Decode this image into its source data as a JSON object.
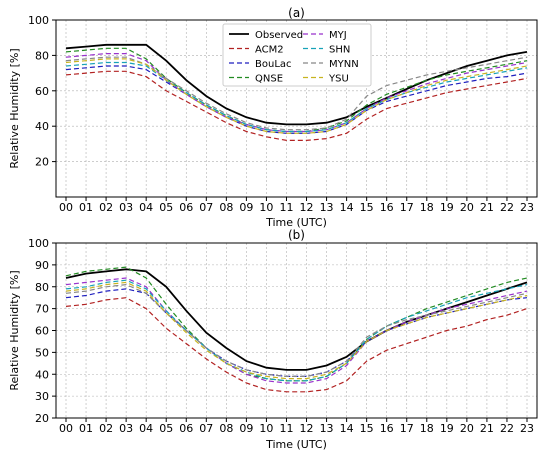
{
  "chart_data": [
    {
      "type": "line",
      "panel_label": "(a)",
      "xlabel": "Time (UTC)",
      "ylabel": "Relative Humidity [%]",
      "ylim": [
        0,
        100
      ],
      "yticks": [
        20,
        40,
        60,
        80,
        100
      ],
      "grid": true,
      "legend_position": "top-center",
      "categories": [
        "00",
        "01",
        "02",
        "03",
        "04",
        "05",
        "06",
        "07",
        "08",
        "09",
        "10",
        "11",
        "12",
        "13",
        "14",
        "15",
        "16",
        "17",
        "18",
        "19",
        "20",
        "21",
        "22",
        "23"
      ],
      "series": [
        {
          "name": "Observed",
          "color": "#000000",
          "dash": "solid",
          "values": [
            84,
            85,
            86,
            86,
            86,
            77,
            66,
            57,
            50,
            45,
            42,
            41,
            41,
            42,
            45,
            51,
            56,
            61,
            66,
            70,
            74,
            77,
            80,
            82
          ]
        },
        {
          "name": "ACM2",
          "color": "#b22222",
          "dash": "dashed",
          "values": [
            69,
            70,
            71,
            71,
            68,
            60,
            54,
            48,
            42,
            37,
            34,
            32,
            32,
            33,
            36,
            44,
            50,
            53,
            56,
            59,
            61,
            63,
            65,
            67
          ]
        },
        {
          "name": "BouLac",
          "color": "#1f1fbf",
          "dash": "dashed",
          "values": [
            72,
            73,
            74,
            74,
            72,
            65,
            58,
            51,
            45,
            40,
            37,
            36,
            36,
            37,
            41,
            49,
            54,
            57,
            60,
            63,
            65,
            67,
            68,
            70
          ]
        },
        {
          "name": "QNSE",
          "color": "#228b22",
          "dash": "dashed",
          "values": [
            82,
            83,
            84,
            84,
            78,
            67,
            59,
            52,
            46,
            41,
            38,
            37,
            37,
            39,
            43,
            52,
            58,
            62,
            66,
            69,
            71,
            73,
            75,
            77
          ]
        },
        {
          "name": "MYJ",
          "color": "#9932cc",
          "dash": "dashed",
          "values": [
            79,
            80,
            81,
            81,
            77,
            66,
            58,
            51,
            45,
            41,
            38,
            37,
            37,
            38,
            42,
            50,
            56,
            60,
            64,
            67,
            70,
            72,
            74,
            76
          ]
        },
        {
          "name": "SHN",
          "color": "#17a2b8",
          "dash": "dashed",
          "values": [
            74,
            75,
            76,
            76,
            74,
            66,
            59,
            52,
            46,
            41,
            38,
            37,
            37,
            38,
            42,
            50,
            55,
            59,
            62,
            65,
            67,
            69,
            71,
            73
          ]
        },
        {
          "name": "MYNN",
          "color": "#888888",
          "dash": "dashed",
          "values": [
            77,
            78,
            79,
            79,
            75,
            67,
            60,
            53,
            47,
            42,
            39,
            38,
            38,
            39,
            44,
            57,
            63,
            66,
            69,
            71,
            73,
            75,
            77,
            79
          ]
        },
        {
          "name": "YSU",
          "color": "#c8b420",
          "dash": "dashed",
          "values": [
            76,
            77,
            78,
            78,
            75,
            66,
            58,
            51,
            45,
            40,
            37,
            36,
            36,
            37,
            41,
            49,
            55,
            59,
            63,
            66,
            68,
            70,
            72,
            74
          ]
        }
      ]
    },
    {
      "type": "line",
      "panel_label": "(b)",
      "xlabel": "Time (UTC)",
      "ylabel": "Relative Humidity [%]",
      "ylim": [
        20,
        100
      ],
      "yticks": [
        20,
        30,
        40,
        50,
        60,
        70,
        80,
        90,
        100
      ],
      "grid": true,
      "categories": [
        "00",
        "01",
        "02",
        "03",
        "04",
        "05",
        "06",
        "07",
        "08",
        "09",
        "10",
        "11",
        "12",
        "13",
        "14",
        "15",
        "16",
        "17",
        "18",
        "19",
        "20",
        "21",
        "22",
        "23"
      ],
      "series": [
        {
          "name": "Observed",
          "color": "#000000",
          "dash": "solid",
          "values": [
            84,
            86,
            87,
            88,
            87,
            80,
            69,
            59,
            52,
            46,
            43,
            42,
            42,
            44,
            48,
            55,
            60,
            64,
            67,
            70,
            73,
            76,
            79,
            82
          ]
        },
        {
          "name": "ACM2",
          "color": "#b22222",
          "dash": "dashed",
          "values": [
            71,
            72,
            74,
            75,
            70,
            61,
            54,
            47,
            41,
            36,
            33,
            32,
            32,
            33,
            37,
            46,
            51,
            54,
            57,
            60,
            62,
            65,
            67,
            70
          ]
        },
        {
          "name": "BouLac",
          "color": "#1f1fbf",
          "dash": "dashed",
          "values": [
            75,
            76,
            78,
            79,
            77,
            68,
            60,
            52,
            46,
            42,
            40,
            39,
            39,
            41,
            46,
            55,
            60,
            63,
            66,
            68,
            70,
            72,
            74,
            75
          ]
        },
        {
          "name": "QNSE",
          "color": "#228b22",
          "dash": "dashed",
          "values": [
            85,
            87,
            88,
            89,
            84,
            72,
            61,
            52,
            45,
            40,
            38,
            37,
            37,
            39,
            45,
            56,
            62,
            66,
            70,
            73,
            76,
            79,
            82,
            84
          ]
        },
        {
          "name": "MYJ",
          "color": "#9932cc",
          "dash": "dashed",
          "values": [
            81,
            82,
            83,
            84,
            80,
            69,
            60,
            52,
            45,
            40,
            37,
            36,
            36,
            38,
            44,
            55,
            60,
            64,
            67,
            70,
            72,
            74,
            76,
            78
          ]
        },
        {
          "name": "SHN",
          "color": "#17a2b8",
          "dash": "dashed",
          "values": [
            79,
            80,
            82,
            83,
            79,
            69,
            60,
            52,
            45,
            41,
            38,
            37,
            37,
            39,
            45,
            56,
            62,
            66,
            69,
            72,
            75,
            77,
            79,
            81
          ]
        },
        {
          "name": "MYNN",
          "color": "#888888",
          "dash": "dashed",
          "values": [
            77,
            78,
            80,
            81,
            77,
            68,
            60,
            52,
            46,
            42,
            40,
            39,
            39,
            41,
            46,
            57,
            62,
            65,
            67,
            69,
            71,
            73,
            75,
            77
          ]
        },
        {
          "name": "YSU",
          "color": "#c8b420",
          "dash": "dashed",
          "values": [
            78,
            79,
            81,
            82,
            78,
            68,
            59,
            51,
            45,
            41,
            39,
            38,
            38,
            40,
            45,
            55,
            60,
            63,
            66,
            68,
            70,
            72,
            74,
            76
          ]
        }
      ]
    }
  ]
}
